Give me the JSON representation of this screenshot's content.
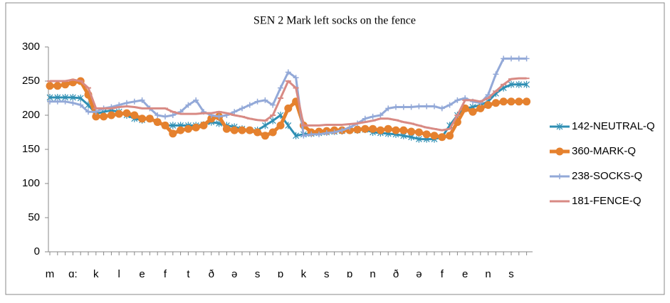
{
  "chart_data": {
    "type": "line",
    "title": "SEN 2 Mark left socks on the fence",
    "categories": [
      "m",
      null,
      null,
      "ɑ:",
      null,
      null,
      "k",
      null,
      null,
      "l",
      null,
      null,
      "e",
      null,
      null,
      "f",
      null,
      null,
      "t",
      null,
      null,
      "ð",
      null,
      null,
      "ə",
      null,
      null,
      "s",
      null,
      null,
      "ɒ",
      null,
      null,
      "k",
      null,
      null,
      "s",
      null,
      null,
      "ɒ",
      null,
      null,
      "n",
      null,
      null,
      "ð",
      null,
      null,
      "ə",
      null,
      null,
      "f",
      null,
      null,
      "e",
      null,
      null,
      "n",
      null,
      null,
      "s",
      null,
      null
    ],
    "ylim": [
      0,
      300
    ],
    "yticks": [
      0,
      50,
      100,
      150,
      200,
      250,
      300
    ],
    "grid": false,
    "legend": "right",
    "series": [
      {
        "name": "142-NEUTRAL-Q",
        "color": "#2f8fb3",
        "marker": "star",
        "values": [
          226,
          226,
          226,
          226,
          225,
          215,
          202,
          205,
          207,
          205,
          200,
          195,
          193,
          195,
          190,
          185,
          185,
          185,
          185,
          185,
          186,
          190,
          188,
          185,
          183,
          180,
          178,
          178,
          185,
          192,
          200,
          185,
          170,
          172,
          173,
          174,
          175,
          176,
          177,
          178,
          178,
          179,
          175,
          174,
          173,
          172,
          170,
          168,
          165,
          165,
          165,
          168,
          185,
          200,
          210,
          212,
          215,
          220,
          232,
          240,
          245,
          245,
          245
        ]
      },
      {
        "name": "360-MARK-Q",
        "color": "#e5812e",
        "marker": "circle",
        "values": [
          243,
          243,
          245,
          248,
          250,
          230,
          198,
          198,
          200,
          202,
          203,
          200,
          195,
          195,
          190,
          185,
          173,
          178,
          180,
          182,
          185,
          195,
          198,
          180,
          178,
          178,
          178,
          175,
          170,
          175,
          185,
          210,
          220,
          185,
          175,
          176,
          177,
          178,
          178,
          178,
          179,
          180,
          180,
          178,
          180,
          178,
          178,
          176,
          175,
          172,
          170,
          168,
          170,
          190,
          210,
          205,
          210,
          215,
          218,
          220,
          220,
          220,
          220
        ]
      },
      {
        "name": "238-SOCKS-Q",
        "color": "#93a9d8",
        "marker": "plus",
        "values": [
          220,
          220,
          220,
          218,
          215,
          205,
          205,
          210,
          212,
          215,
          218,
          220,
          222,
          210,
          200,
          198,
          200,
          205,
          215,
          222,
          205,
          200,
          198,
          200,
          205,
          210,
          215,
          220,
          222,
          215,
          240,
          263,
          255,
          170,
          172,
          172,
          174,
          175,
          178,
          182,
          188,
          195,
          198,
          200,
          210,
          212,
          212,
          212,
          213,
          213,
          213,
          210,
          215,
          222,
          225,
          220,
          218,
          230,
          260,
          283,
          283,
          283,
          283
        ]
      },
      {
        "name": "181-FENCE-Q",
        "color": "#d88a84",
        "marker": "dash",
        "values": [
          250,
          250,
          250,
          252,
          250,
          240,
          210,
          210,
          210,
          212,
          213,
          212,
          210,
          210,
          210,
          210,
          205,
          202,
          202,
          202,
          203,
          203,
          205,
          203,
          200,
          198,
          195,
          193,
          192,
          200,
          225,
          250,
          240,
          185,
          185,
          185,
          186,
          186,
          186,
          187,
          188,
          190,
          192,
          195,
          195,
          193,
          190,
          188,
          185,
          182,
          180,
          178,
          180,
          200,
          222,
          222,
          220,
          225,
          235,
          245,
          253,
          254,
          254
        ]
      }
    ]
  }
}
